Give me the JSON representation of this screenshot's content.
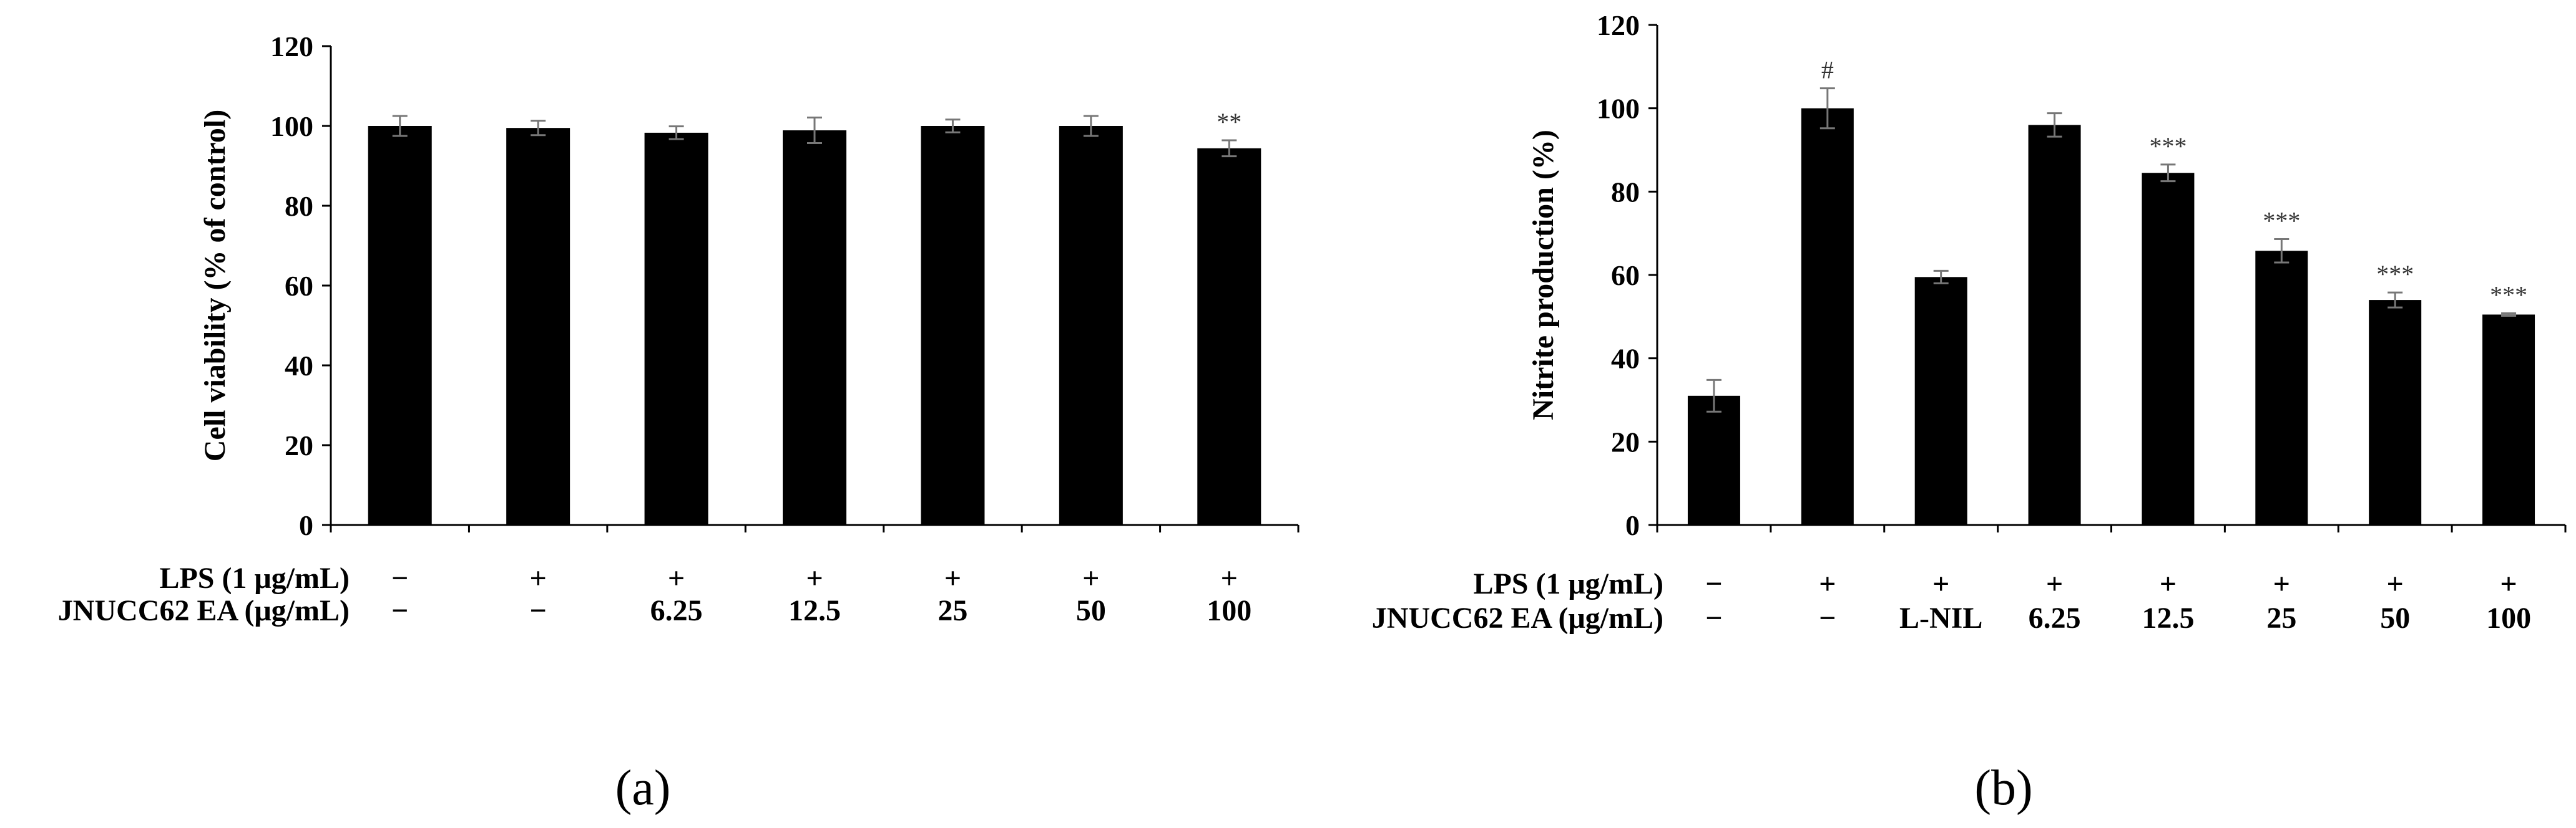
{
  "chart_data": [
    {
      "type": "bar",
      "panel_label": "(a)",
      "ylabel": "Cell viability (% of control)",
      "ylim": [
        0,
        120
      ],
      "yticks": [
        0,
        20,
        40,
        60,
        80,
        100,
        120
      ],
      "series": [
        {
          "values": [
            100,
            99.5,
            98.3,
            98.9,
            100,
            100,
            94.4
          ],
          "errors": [
            2.5,
            1.8,
            1.6,
            3.2,
            1.6,
            2.5,
            2.0
          ],
          "significance": [
            "",
            "",
            "",
            "",
            "",
            "",
            "**"
          ]
        }
      ],
      "treatment_rows": [
        {
          "label": "LPS (1 μg/mL)",
          "values": [
            "−",
            "+",
            "+",
            "+",
            "+",
            "+",
            "+"
          ]
        },
        {
          "label": "JNUCC62 EA (μg/mL)",
          "values": [
            "−",
            "−",
            "6.25",
            "12.5",
            "25",
            "50",
            "100"
          ]
        }
      ],
      "color": "#000000"
    },
    {
      "type": "bar",
      "panel_label": "(b)",
      "ylabel": "Nitrite production (%)",
      "ylim": [
        0,
        120
      ],
      "yticks": [
        0,
        20,
        40,
        60,
        80,
        100,
        120
      ],
      "series": [
        {
          "values": [
            31,
            100,
            59.5,
            96,
            84.5,
            65.8,
            54,
            50.5
          ],
          "errors": [
            3.8,
            4.8,
            1.5,
            2.8,
            2.0,
            2.8,
            1.8,
            0.3
          ],
          "significance": [
            "",
            "#",
            "",
            "",
            "***",
            "***",
            "***",
            "***"
          ]
        }
      ],
      "treatment_rows": [
        {
          "label": "LPS (1 μg/mL)",
          "values": [
            "−",
            "+",
            "+",
            "+",
            "+",
            "+",
            "+",
            "+"
          ]
        },
        {
          "label": "JNUCC62 EA (μg/mL)",
          "values": [
            "−",
            "−",
            "L-NIL",
            "6.25",
            "12.5",
            "25",
            "50",
            "100"
          ]
        }
      ],
      "color": "#000000"
    }
  ]
}
